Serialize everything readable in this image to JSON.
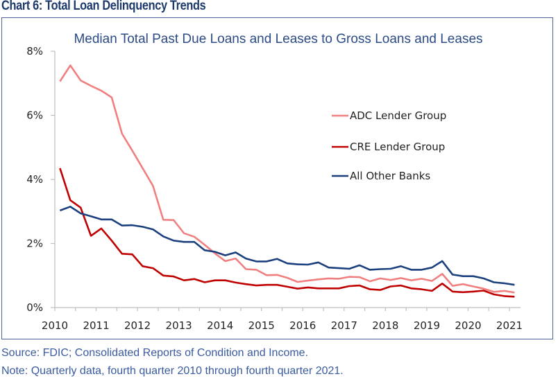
{
  "header": {
    "title": "Chart 6: Total Loan Delinquency Trends"
  },
  "footer": {
    "source": "Source: FDIC; Consolidated Reports of Condition and Income.",
    "note": "Note: Quarterly data, fourth quarter 2010 through fourth quarter 2021."
  },
  "chart_data": {
    "type": "line",
    "title": "Median Total Past Due Loans and Leases to Gross Loans and Leases",
    "xlabel": "",
    "ylabel": "",
    "x_start": "2010 Q4",
    "x_end": "2021 Q4",
    "x_frequency": "quarterly",
    "xlim": [
      2010,
      2021.25
    ],
    "ylim": [
      0,
      8
    ],
    "y_ticks": [
      0,
      2,
      4,
      6,
      8
    ],
    "y_tick_labels": [
      "0%",
      "2%",
      "4%",
      "6%",
      "8%"
    ],
    "x_ticks": [
      2010,
      2011,
      2012,
      2013,
      2014,
      2015,
      2016,
      2017,
      2018,
      2019,
      2020,
      2021
    ],
    "x_tick_labels": [
      "2010",
      "2011",
      "2012",
      "2013",
      "2014",
      "2015",
      "2016",
      "2017",
      "2018",
      "2019",
      "2020",
      "2021"
    ],
    "grid": false,
    "legend_position": "center-right",
    "series": [
      {
        "name": "ADC Lender Group",
        "color": "#f08080",
        "values": [
          7.06,
          7.56,
          7.09,
          6.92,
          6.77,
          6.56,
          5.43,
          4.9,
          4.35,
          3.8,
          2.74,
          2.73,
          2.32,
          2.21,
          1.96,
          1.69,
          1.45,
          1.53,
          1.2,
          1.18,
          1.01,
          1.02,
          0.93,
          0.8,
          0.84,
          0.88,
          0.91,
          0.9,
          0.96,
          0.95,
          0.82,
          0.91,
          0.86,
          0.92,
          0.85,
          0.9,
          0.83,
          1.05,
          0.68,
          0.73,
          0.66,
          0.59,
          0.49,
          0.52,
          0.47
        ]
      },
      {
        "name": "CRE Lender Group",
        "color": "#c00000",
        "values": [
          4.35,
          3.35,
          3.12,
          2.24,
          2.47,
          2.09,
          1.68,
          1.66,
          1.29,
          1.23,
          1.0,
          0.97,
          0.85,
          0.89,
          0.79,
          0.85,
          0.85,
          0.78,
          0.73,
          0.69,
          0.71,
          0.71,
          0.65,
          0.59,
          0.63,
          0.6,
          0.6,
          0.6,
          0.67,
          0.69,
          0.57,
          0.55,
          0.66,
          0.69,
          0.6,
          0.57,
          0.52,
          0.75,
          0.5,
          0.48,
          0.5,
          0.53,
          0.41,
          0.36,
          0.34
        ]
      },
      {
        "name": "All Other Banks",
        "color": "#1c3f7e",
        "values": [
          3.03,
          3.15,
          2.94,
          2.85,
          2.75,
          2.75,
          2.56,
          2.57,
          2.52,
          2.44,
          2.22,
          2.09,
          2.05,
          2.05,
          1.79,
          1.74,
          1.63,
          1.72,
          1.53,
          1.44,
          1.44,
          1.52,
          1.38,
          1.35,
          1.34,
          1.41,
          1.25,
          1.23,
          1.21,
          1.32,
          1.18,
          1.2,
          1.21,
          1.29,
          1.18,
          1.18,
          1.25,
          1.45,
          1.03,
          0.98,
          0.98,
          0.91,
          0.79,
          0.76,
          0.71
        ]
      }
    ]
  }
}
